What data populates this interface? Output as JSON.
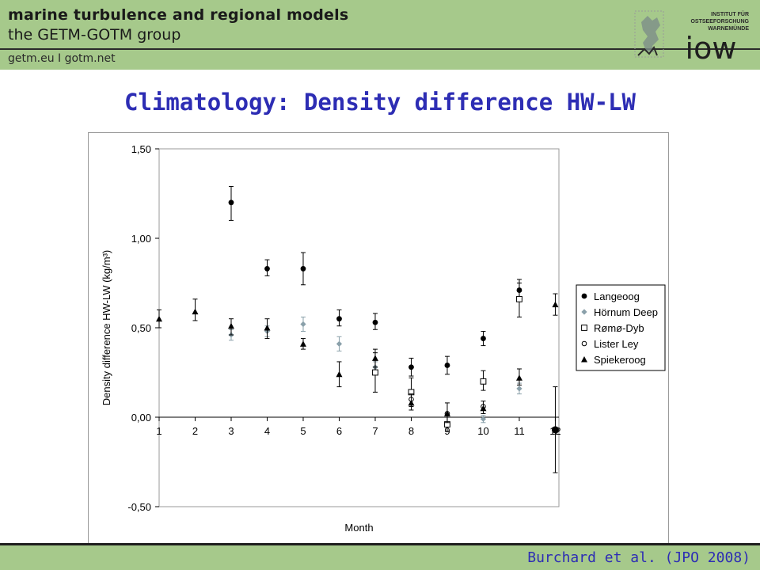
{
  "header": {
    "group_name": "marine turbulence and regional models",
    "group_sub": "the GETM-GOTM group",
    "links": "getm.eu  I  gotm.net",
    "logo_text": [
      "INSTITUT FÜR",
      "OSTSEEFORSCHUNG",
      "WARNEMÜNDE"
    ],
    "logo_word": "iow"
  },
  "slide_title": "Climatology: Density difference HW-LW",
  "footer": {
    "citation": "Burchard et al. (JPO 2008)"
  },
  "colors": {
    "header_bg": "#a6c98b",
    "title": "#2d2db4",
    "citation": "#2d2db4",
    "series_dark": "#000000",
    "series_grey": "#8aa0aa"
  },
  "chart_data": {
    "type": "scatter",
    "title": "",
    "xlabel": "Month",
    "ylabel": "Density difference HW-LW (kg/m³)",
    "xlim": [
      1,
      12
    ],
    "ylim": [
      -0.5,
      1.5
    ],
    "x_ticks": [
      1,
      2,
      3,
      4,
      5,
      6,
      7,
      8,
      9,
      10,
      11,
      12
    ],
    "y_ticks": [
      "-0,50",
      "0,00",
      "0,50",
      "1,00",
      "1,50"
    ],
    "grid": false,
    "legend_position": "right",
    "series": [
      {
        "name": "Langeoog",
        "marker": "filled-circle",
        "color": "#000000",
        "points": [
          {
            "x": 3,
            "y": 1.2,
            "lo": 1.1,
            "hi": 1.29
          },
          {
            "x": 4,
            "y": 0.83,
            "lo": 0.79,
            "hi": 0.88
          },
          {
            "x": 5,
            "y": 0.83,
            "lo": 0.74,
            "hi": 0.92
          },
          {
            "x": 6,
            "y": 0.55,
            "lo": 0.51,
            "hi": 0.6
          },
          {
            "x": 7,
            "y": 0.53,
            "lo": 0.49,
            "hi": 0.58
          },
          {
            "x": 8,
            "y": 0.28,
            "lo": 0.23,
            "hi": 0.33
          },
          {
            "x": 9,
            "y": 0.29,
            "lo": 0.24,
            "hi": 0.34
          },
          {
            "x": 10,
            "y": 0.44,
            "lo": 0.4,
            "hi": 0.48
          },
          {
            "x": 11,
            "y": 0.71,
            "lo": 0.67,
            "hi": 0.77
          }
        ]
      },
      {
        "name": "Hörnum Deep",
        "marker": "filled-diamond",
        "color": "#8aa0aa",
        "points": [
          {
            "x": 3,
            "y": 0.46,
            "lo": 0.43,
            "hi": 0.49
          },
          {
            "x": 4,
            "y": 0.48,
            "lo": 0.45,
            "hi": 0.51
          },
          {
            "x": 5,
            "y": 0.52,
            "lo": 0.48,
            "hi": 0.56
          },
          {
            "x": 6,
            "y": 0.41,
            "lo": 0.37,
            "hi": 0.45
          },
          {
            "x": 7,
            "y": 0.28,
            "lo": 0.25,
            "hi": 0.31
          },
          {
            "x": 10,
            "y": -0.01,
            "lo": -0.03,
            "hi": 0.01
          },
          {
            "x": 11,
            "y": 0.16,
            "lo": 0.13,
            "hi": 0.19
          }
        ]
      },
      {
        "name": "Rømø-Dyb",
        "marker": "open-square",
        "color": "#000000",
        "points": [
          {
            "x": 7,
            "y": 0.25,
            "lo": 0.14,
            "hi": 0.36
          },
          {
            "x": 8,
            "y": 0.14,
            "lo": 0.06,
            "hi": 0.22
          },
          {
            "x": 9,
            "y": -0.04,
            "lo": -0.08,
            "hi": 0.0
          },
          {
            "x": 10,
            "y": 0.2,
            "lo": 0.15,
            "hi": 0.26
          },
          {
            "x": 11,
            "y": 0.66,
            "lo": 0.56,
            "hi": 0.75
          }
        ]
      },
      {
        "name": "Lister Ley",
        "marker": "open-circle",
        "color": "#000000",
        "points": [
          {
            "x": 8,
            "y": 0.1
          },
          {
            "x": 9,
            "y": 0.02
          },
          {
            "x": 10,
            "y": 0.06
          }
        ]
      },
      {
        "name": "Spiekeroog",
        "marker": "filled-triangle",
        "color": "#000000",
        "points": [
          {
            "x": 1,
            "y": 0.55,
            "lo": 0.5,
            "hi": 0.6
          },
          {
            "x": 2,
            "y": 0.59,
            "lo": 0.54,
            "hi": 0.66
          },
          {
            "x": 3,
            "y": 0.51,
            "lo": 0.46,
            "hi": 0.55
          },
          {
            "x": 4,
            "y": 0.5,
            "lo": 0.44,
            "hi": 0.55
          },
          {
            "x": 5,
            "y": 0.41,
            "lo": 0.38,
            "hi": 0.44
          },
          {
            "x": 6,
            "y": 0.24,
            "lo": 0.17,
            "hi": 0.31
          },
          {
            "x": 7,
            "y": 0.33,
            "lo": 0.28,
            "hi": 0.38
          },
          {
            "x": 8,
            "y": 0.08,
            "lo": 0.04,
            "hi": 0.13
          },
          {
            "x": 9,
            "y": 0.02,
            "lo": -0.03,
            "hi": 0.08
          },
          {
            "x": 10,
            "y": 0.05,
            "lo": 0.02,
            "hi": 0.09
          },
          {
            "x": 11,
            "y": 0.22,
            "lo": 0.18,
            "hi": 0.27
          },
          {
            "x": 12,
            "y": 0.63,
            "lo": 0.57,
            "hi": 0.69
          }
        ]
      },
      {
        "name": "",
        "marker": "filled-circle-large",
        "color": "#000000",
        "points": [
          {
            "x": 12,
            "y": -0.07,
            "lo": -0.31,
            "hi": 0.17
          }
        ]
      }
    ]
  }
}
